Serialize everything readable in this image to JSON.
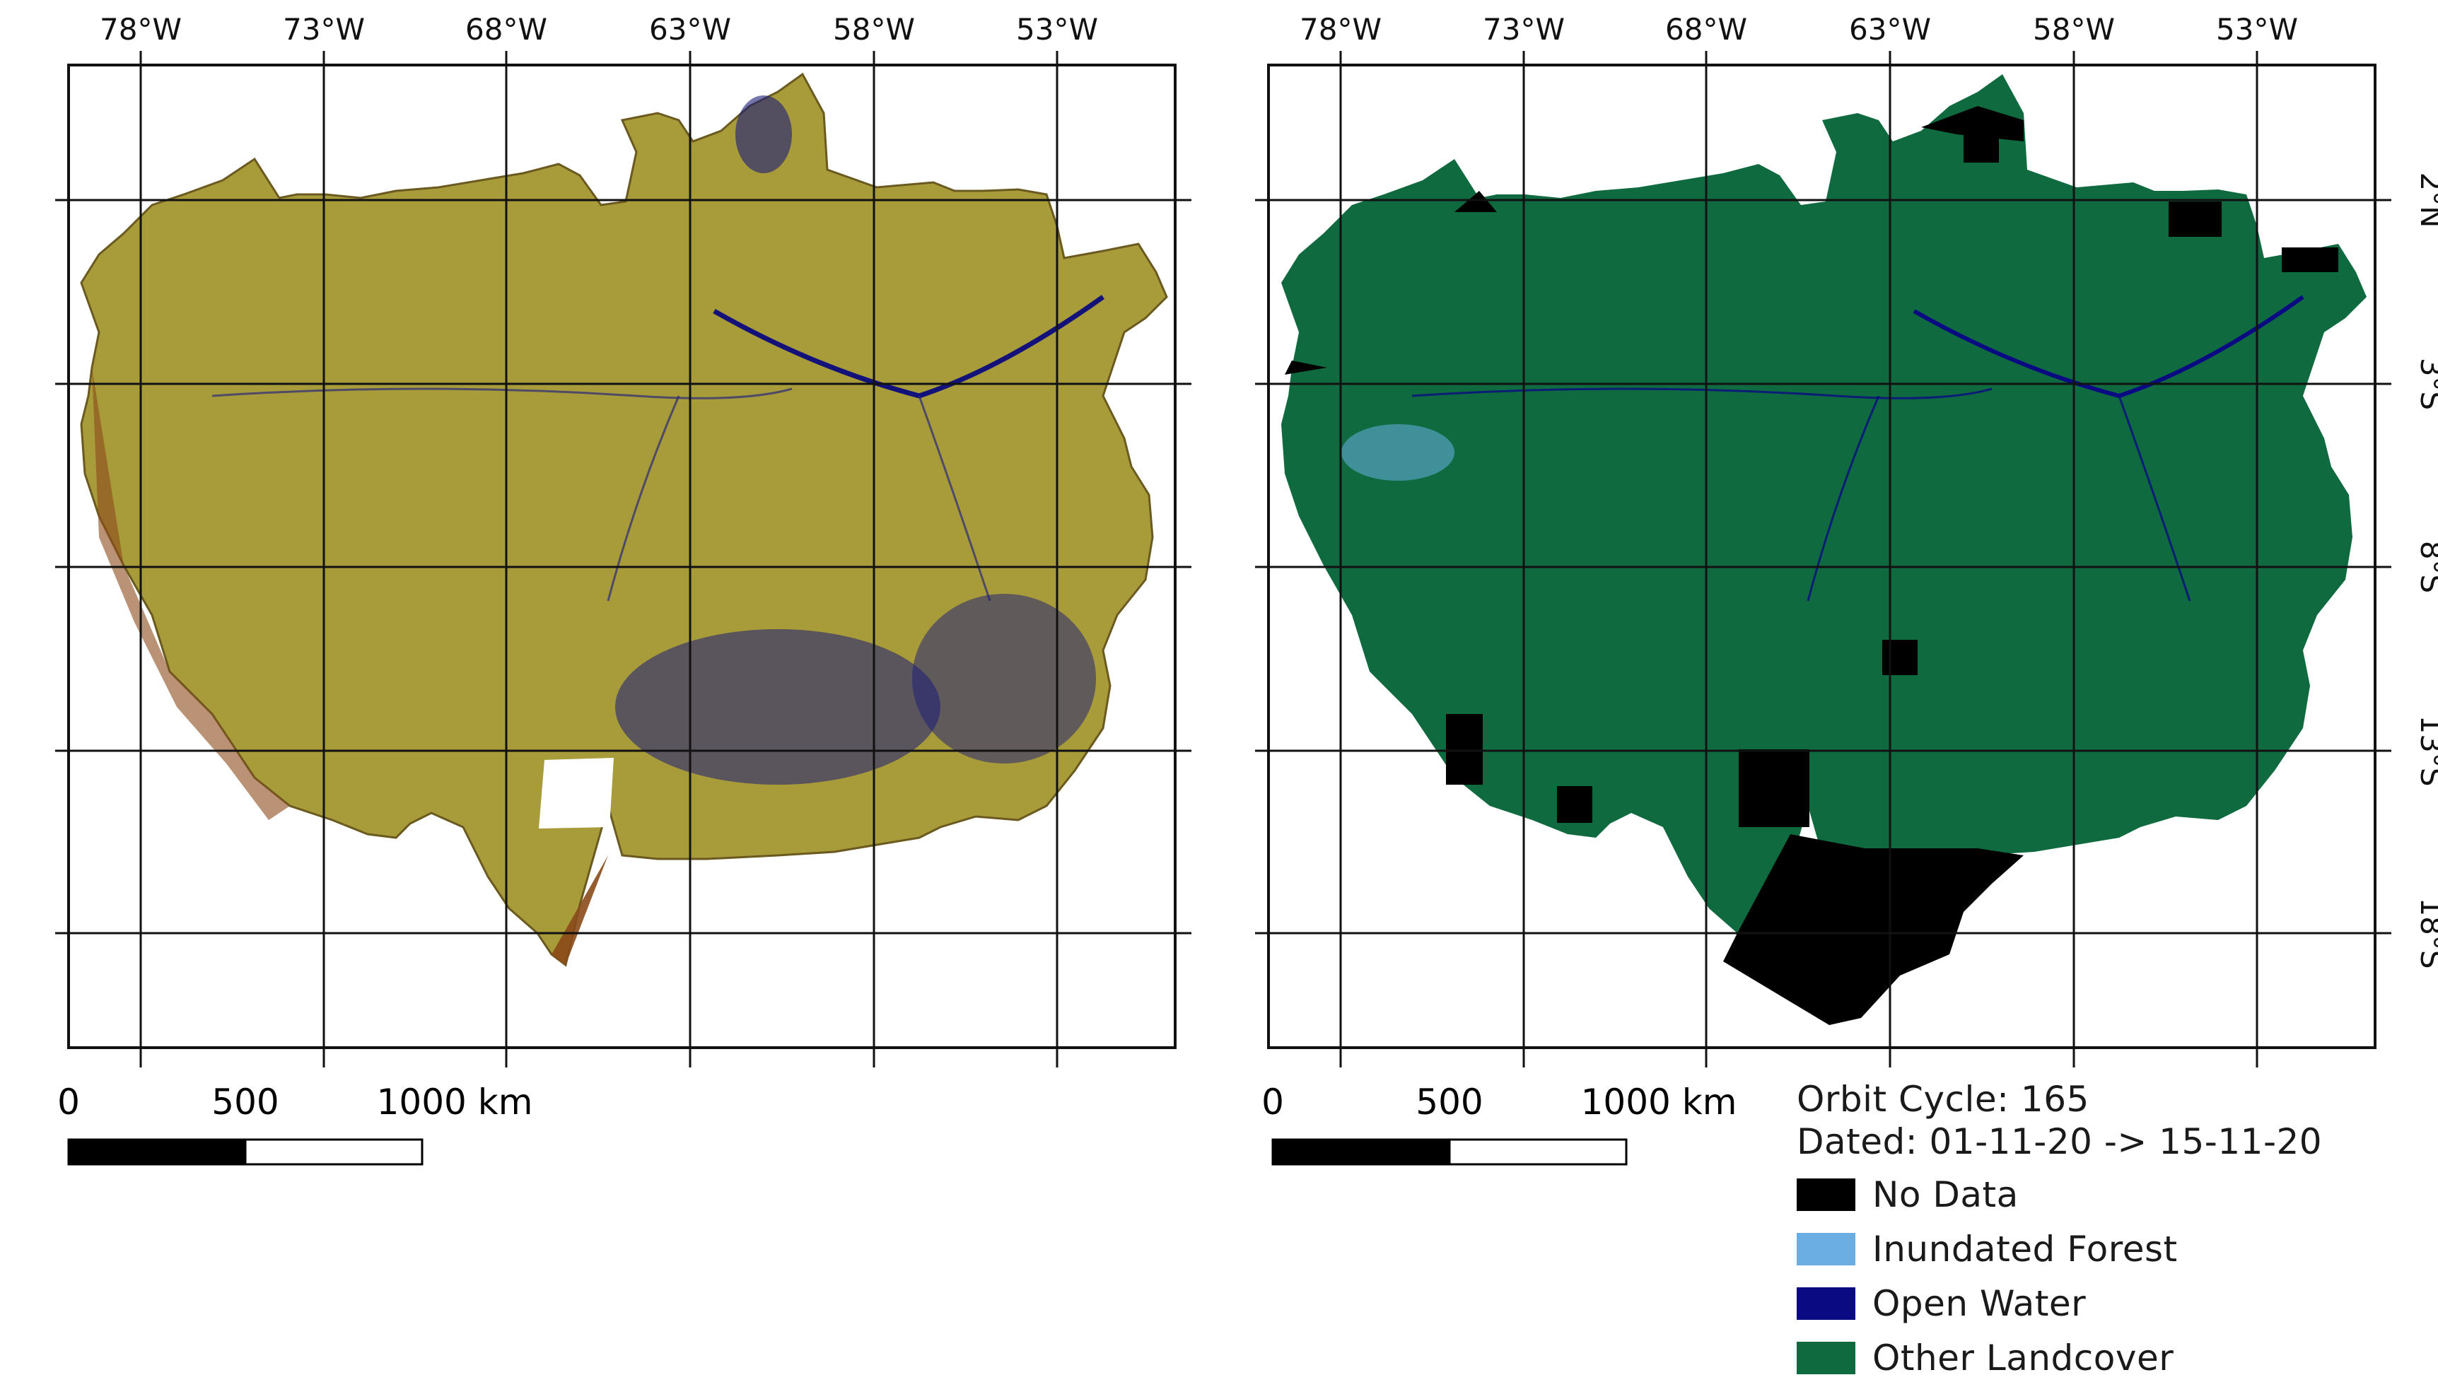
{
  "colors": {
    "no_data": "#000000",
    "inundated_forest": "#6aaee3",
    "open_water": "#0a0a82",
    "other_landcover": "#0f6b3f",
    "sar_composite": "#a89b3a"
  },
  "left_map": {
    "lon_labels": [
      "78°W",
      "73°W",
      "68°W",
      "63°W",
      "58°W",
      "53°W"
    ],
    "scale": {
      "zero": "0",
      "mid": "500",
      "end": "1000 km"
    }
  },
  "right_map": {
    "lon_labels": [
      "78°W",
      "73°W",
      "68°W",
      "63°W",
      "58°W",
      "53°W"
    ],
    "lat_labels": [
      "2°N",
      "3°S",
      "8°S",
      "13°S",
      "18°S"
    ],
    "scale": {
      "zero": "0",
      "mid": "500",
      "end": "1000 km"
    }
  },
  "legend": {
    "orbit_line": "Orbit Cycle: 165",
    "dated_line": "Dated: 01-11-20 -> 15-11-20",
    "items": [
      {
        "label": "No Data",
        "color": "#000000",
        "icon": "black-square-swatch"
      },
      {
        "label": "Inundated Forest",
        "color": "#6aaee3",
        "icon": "light-blue-square-swatch"
      },
      {
        "label": "Open Water",
        "color": "#0a0a82",
        "icon": "navy-square-swatch"
      },
      {
        "label": "Other Landcover",
        "color": "#0f6b3f",
        "icon": "green-square-swatch"
      }
    ]
  }
}
